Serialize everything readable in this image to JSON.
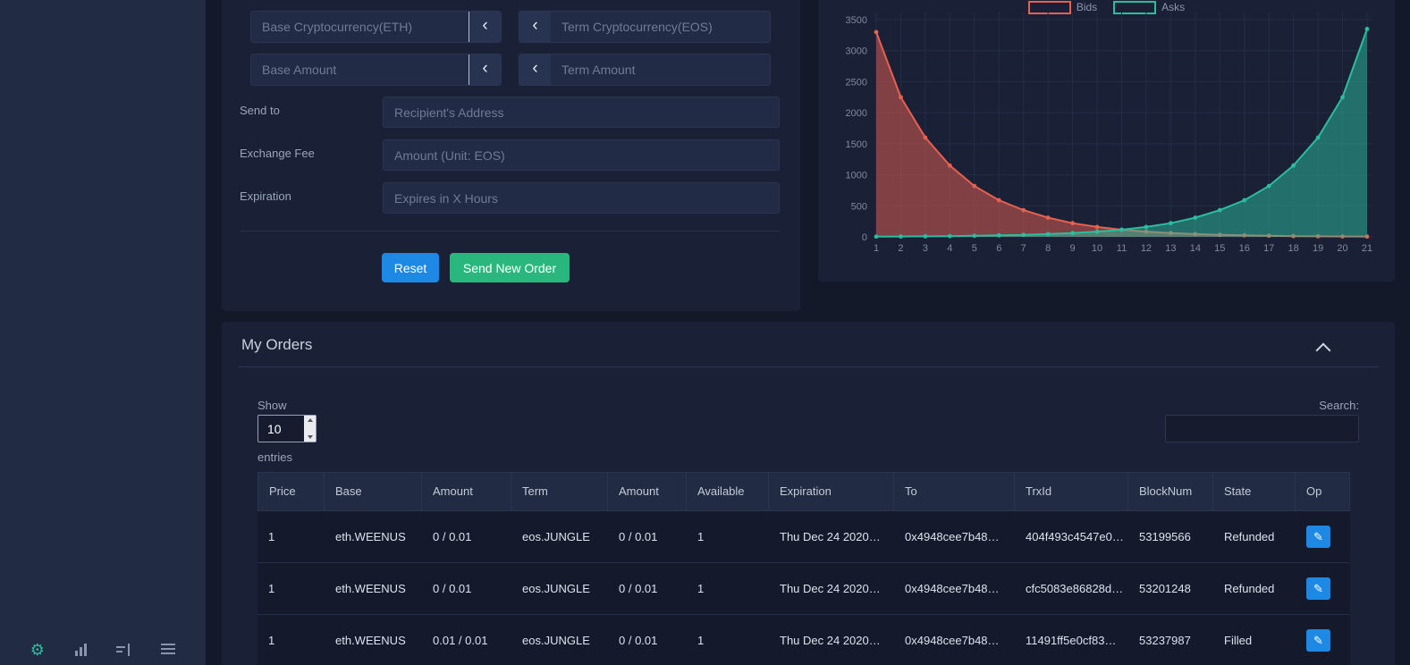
{
  "colors": {
    "accent_blue": "#1e88e5",
    "accent_green": "#2ab77e",
    "bids": "#e8604f",
    "asks": "#2bbda0",
    "panel_bg": "#1a2136",
    "page_bg": "#131929",
    "sidebar_bg": "#212c44"
  },
  "sidebar": {
    "icons": [
      "settings-gear",
      "bar-chart",
      "stacked-chart",
      "list"
    ]
  },
  "order_form": {
    "base_currency_placeholder": "Base Cryptocurrency(ETH)",
    "term_currency_placeholder": "Term Cryptocurrency(EOS)",
    "base_amount_placeholder": "Base Amount",
    "term_amount_placeholder": "Term Amount",
    "swap_chevron": "‹",
    "send_to_label": "Send to",
    "send_to_placeholder": "Recipient's Address",
    "exchange_fee_label": "Exchange Fee",
    "exchange_fee_placeholder": "Amount (Unit: EOS)",
    "expiration_label": "Expiration",
    "expiration_placeholder": "Expires in X Hours",
    "reset_label": "Reset",
    "submit_label": "Send New Order"
  },
  "chart_data": {
    "type": "area",
    "x": [
      1,
      2,
      3,
      4,
      5,
      6,
      7,
      8,
      9,
      10,
      11,
      12,
      13,
      14,
      15,
      16,
      17,
      18,
      19,
      20,
      21
    ],
    "series": [
      {
        "name": "Bids",
        "color": "#e8604f",
        "values": [
          3300,
          2250,
          1600,
          1150,
          820,
          590,
          430,
          310,
          220,
          160,
          115,
          85,
          60,
          45,
          32,
          24,
          17,
          12,
          9,
          6,
          5
        ]
      },
      {
        "name": "Asks",
        "color": "#2bbda0",
        "values": [
          5,
          6,
          9,
          12,
          17,
          24,
          32,
          45,
          60,
          85,
          115,
          160,
          220,
          310,
          430,
          590,
          820,
          1150,
          1600,
          2250,
          3350
        ]
      }
    ],
    "ylim": [
      0,
      3500
    ],
    "yticks": [
      0,
      500,
      1000,
      1500,
      2000,
      2500,
      3000,
      3500
    ],
    "legend_position": "top",
    "grid": true,
    "title": "",
    "xlabel": "",
    "ylabel": ""
  },
  "orders": {
    "title": "My Orders",
    "show_label": "Show",
    "page_size": "10",
    "entries_label": "entries",
    "search_label": "Search:",
    "search_value": "",
    "columns": [
      "Price",
      "Base",
      "Amount",
      "Term",
      "Amount",
      "Available",
      "Expiration",
      "To",
      "TrxId",
      "BlockNum",
      "State",
      "Op"
    ],
    "rows": [
      {
        "cells": [
          "1",
          "eth.WEENUS",
          "0 / 0.01",
          "eos.JUNGLE",
          "0 / 0.01",
          "1",
          "Thu Dec 24 2020…",
          "0x4948cee7b48…",
          "404f493c4547e0…",
          "53199566",
          "Refunded"
        ]
      },
      {
        "cells": [
          "1",
          "eth.WEENUS",
          "0 / 0.01",
          "eos.JUNGLE",
          "0 / 0.01",
          "1",
          "Thu Dec 24 2020…",
          "0x4948cee7b48…",
          "cfc5083e86828d…",
          "53201248",
          "Refunded"
        ]
      },
      {
        "cells": [
          "1",
          "eth.WEENUS",
          "0.01 / 0.01",
          "eos.JUNGLE",
          "0 / 0.01",
          "1",
          "Thu Dec 24 2020…",
          "0x4948cee7b48…",
          "11491ff5e0cf83…",
          "53237987",
          "Filled"
        ]
      }
    ],
    "op_icon": "✎"
  }
}
